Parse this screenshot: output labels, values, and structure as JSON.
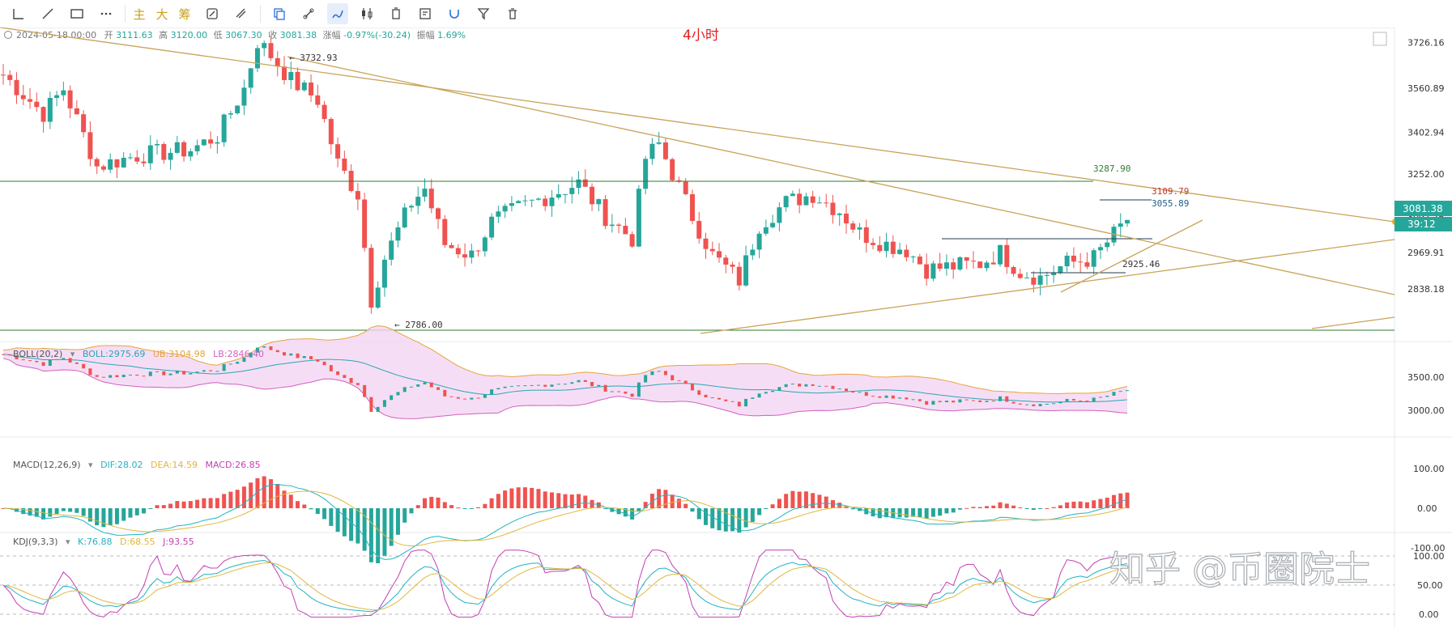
{
  "toolbar": {
    "tools": [
      "line-tool-icon",
      "trend-line-icon",
      "rectangle-icon",
      "more-icon",
      "pen-icon",
      "ruler-icon",
      "brush-icon",
      "candles-icon",
      "delete-icon",
      "note-icon",
      "magnet-icon",
      "filter-icon",
      "trash-icon"
    ],
    "text_buttons": [
      "主",
      "大",
      "筹"
    ]
  },
  "header": {
    "date": "2024-05-18 00:00",
    "open_label": "开",
    "open": "3111.63",
    "high_label": "高",
    "high": "3120.00",
    "low_label": "低",
    "low": "3067.30",
    "close_label": "收",
    "close": "3081.38",
    "change_label": "涨幅",
    "change": "-0.97%(-30.24)",
    "amplitude_label": "振幅",
    "amplitude": "1.69%",
    "timeframe": "4小时"
  },
  "chart_data": {
    "type": "candlestick",
    "timeframe": "4h",
    "ylim": [
      2760,
      3780
    ],
    "price_ticks": [
      "3726.16",
      "3560.89",
      "3402.94",
      "3252.00",
      "3097.76",
      "2969.91",
      "2838.18"
    ],
    "current_price": "3081.38",
    "countdown": "39:12",
    "annotations": {
      "high": "3732.93",
      "low": "2786.00",
      "resistance": "3287.90",
      "level_a": "3109.79",
      "level_b": "3055.89",
      "level_c": "2925.46"
    },
    "trend_points": [
      [
        0,
        3610
      ],
      [
        6,
        3470
      ],
      [
        9,
        3560
      ],
      [
        14,
        3280
      ],
      [
        20,
        3320
      ],
      [
        24,
        3330
      ],
      [
        28,
        3340
      ],
      [
        32,
        3390
      ],
      [
        36,
        3560
      ],
      [
        38,
        3730
      ],
      [
        40,
        3680
      ],
      [
        43,
        3590
      ],
      [
        47,
        3520
      ],
      [
        50,
        3290
      ],
      [
        53,
        3180
      ],
      [
        55,
        2800
      ],
      [
        57,
        2950
      ],
      [
        61,
        3150
      ],
      [
        63,
        3200
      ],
      [
        66,
        3000
      ],
      [
        70,
        2960
      ],
      [
        73,
        3080
      ],
      [
        77,
        3130
      ],
      [
        82,
        3180
      ],
      [
        86,
        3220
      ],
      [
        90,
        3100
      ],
      [
        94,
        3020
      ],
      [
        96,
        3310
      ],
      [
        98,
        3360
      ],
      [
        103,
        3100
      ],
      [
        106,
        2960
      ],
      [
        110,
        2870
      ],
      [
        113,
        3070
      ],
      [
        117,
        3150
      ],
      [
        121,
        3180
      ],
      [
        125,
        3120
      ],
      [
        128,
        3040
      ],
      [
        132,
        3000
      ],
      [
        135,
        2980
      ],
      [
        138,
        2910
      ],
      [
        142,
        2920
      ],
      [
        146,
        2930
      ],
      [
        149,
        2970
      ],
      [
        152,
        2900
      ],
      [
        155,
        2880
      ],
      [
        159,
        2930
      ],
      [
        163,
        2950
      ],
      [
        168,
        3090
      ]
    ],
    "boll": {
      "label": "BOLL(20,2)",
      "boll_label": "BOLL:",
      "boll": "2975.69",
      "ub_label": "UB:",
      "ub": "3104.98",
      "lb_label": "LB:",
      "lb": "2846.40",
      "ticks": [
        "3500.00",
        "3000.00"
      ]
    },
    "macd": {
      "label": "MACD(12,26,9)",
      "dif_label": "DIF:",
      "dif": "28.02",
      "dea_label": "DEA:",
      "dea": "14.59",
      "macd_label": "MACD:",
      "macd": "26.85",
      "ticks": [
        "100.00",
        "0.00",
        "-100.00"
      ]
    },
    "kdj": {
      "label": "KDJ(9,3,3)",
      "k_label": "K:",
      "k": "76.88",
      "d_label": "D:",
      "d": "68.55",
      "j_label": "J:",
      "j": "93.55",
      "ticks": [
        "100.00",
        "50.00",
        "0.00"
      ]
    }
  },
  "colors": {
    "up": "#26a69a",
    "down": "#ef5350",
    "trendline": "#c8a35a",
    "hline": "#2e7d32",
    "price_tag": "#26a69a",
    "ub": "#e8a33d",
    "lb": "#d25fc0",
    "boll": "#2aa5b5",
    "dif": "#22b3c4",
    "dea": "#e0b73c",
    "j": "#c23fb3"
  },
  "watermark": "知乎 @币圈院士"
}
